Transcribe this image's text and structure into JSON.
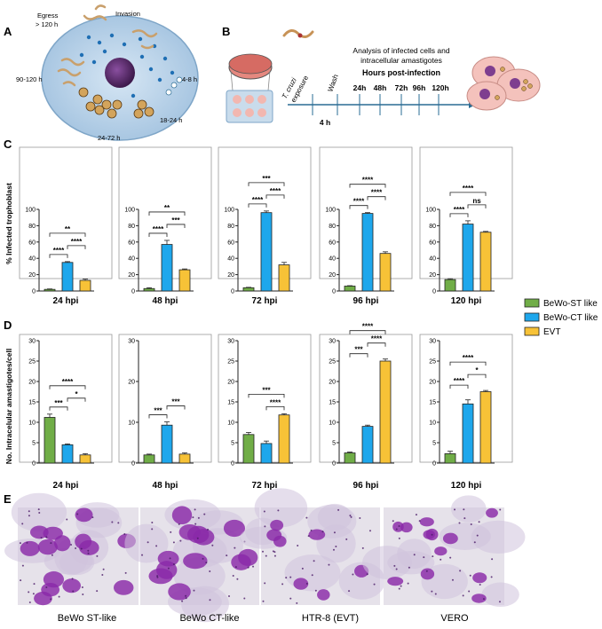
{
  "panel_labels": [
    "A",
    "B",
    "C",
    "D",
    "E"
  ],
  "colors": {
    "st_like": "#70ad47",
    "ct_like": "#1ea7ec",
    "evt": "#f7c237",
    "cell_body": "#b8d3ea",
    "nucleus": "#5b2e6b",
    "timeline": "#2a6c94",
    "cells_b": "#f4c2bc"
  },
  "panel_a": {
    "labels": [
      "Egress",
      "> 120 h",
      "Invasion",
      "4-8 h",
      "90-120 h",
      "18-24 h",
      "24-72 h"
    ]
  },
  "panel_b": {
    "heading_line1": "Analysis of infected cells and",
    "heading_line2": "intracellular amastigotes",
    "subheading": "Hours post-infection",
    "exposure_line1": "T. cruzi",
    "exposure_line2": "exposure",
    "wash": "Wash",
    "interval": "4 h",
    "timepoints": [
      "24h",
      "48h",
      "72h",
      "96h",
      "120h"
    ]
  },
  "legend": [
    "BeWo-ST like",
    "BeWo-CT like",
    "EVT"
  ],
  "chart_data": [
    {
      "panel": "C",
      "type": "bar",
      "ylabel": "% Infected trophoblast",
      "ylim": [
        0,
        100
      ],
      "yticks": [
        "0",
        "20",
        "40",
        "60",
        "80",
        "100"
      ],
      "categories": [
        "BeWo-ST like",
        "BeWo-CT like",
        "EVT"
      ],
      "charts": [
        {
          "title": "24 hpi",
          "values": [
            2,
            35,
            13
          ],
          "errors": [
            0.5,
            1,
            1.5
          ],
          "sig": [
            {
              "a": 0,
              "b": 1,
              "label": "****"
            },
            {
              "a": 1,
              "b": 2,
              "label": "****"
            },
            {
              "a": 0,
              "b": 2,
              "label": "**"
            }
          ]
        },
        {
          "title": "48 hpi",
          "values": [
            3,
            57,
            26
          ],
          "errors": [
            1,
            5,
            1
          ],
          "sig": [
            {
              "a": 0,
              "b": 1,
              "label": "****"
            },
            {
              "a": 1,
              "b": 2,
              "label": "***"
            },
            {
              "a": 0,
              "b": 2,
              "label": "**"
            }
          ]
        },
        {
          "title": "72 hpi",
          "values": [
            4,
            96,
            32
          ],
          "errors": [
            0.5,
            2,
            3
          ],
          "sig": [
            {
              "a": 0,
              "b": 1,
              "label": "****"
            },
            {
              "a": 1,
              "b": 2,
              "label": "****"
            },
            {
              "a": 0,
              "b": 2,
              "label": "***"
            }
          ]
        },
        {
          "title": "96 hpi",
          "values": [
            6,
            95,
            46
          ],
          "errors": [
            0.5,
            1,
            2
          ],
          "sig": [
            {
              "a": 0,
              "b": 1,
              "label": "****"
            },
            {
              "a": 1,
              "b": 2,
              "label": "****"
            },
            {
              "a": 0,
              "b": 2,
              "label": "****"
            }
          ]
        },
        {
          "title": "120 hpi",
          "values": [
            14,
            82,
            72
          ],
          "errors": [
            1,
            4,
            1
          ],
          "sig": [
            {
              "a": 0,
              "b": 1,
              "label": "****"
            },
            {
              "a": 1,
              "b": 2,
              "label": "ns"
            },
            {
              "a": 0,
              "b": 2,
              "label": "****"
            }
          ]
        }
      ]
    },
    {
      "panel": "D",
      "type": "bar",
      "ylabel": "No. Intracelular amastigotes/cell",
      "categories": [
        "BeWo-ST like",
        "BeWo-CT like",
        "EVT"
      ],
      "charts": [
        {
          "title": "24 hpi",
          "ylim": [
            0,
            30
          ],
          "yticks": [
            "0",
            "5",
            "10",
            "15",
            "20",
            "25",
            "30"
          ],
          "values": [
            11.2,
            4.5,
            2.0
          ],
          "errors": [
            0.8,
            0.2,
            0.3
          ],
          "sig": [
            {
              "a": 0,
              "b": 1,
              "label": "***"
            },
            {
              "a": 1,
              "b": 2,
              "label": "*"
            },
            {
              "a": 0,
              "b": 2,
              "label": "****"
            }
          ]
        },
        {
          "title": "48 hpi",
          "ylim": [
            0,
            30
          ],
          "yticks": [
            "0",
            "10",
            "20",
            "30"
          ],
          "values": [
            2.0,
            9.3,
            2.2
          ],
          "errors": [
            0.2,
            0.8,
            0.3
          ],
          "sig": [
            {
              "a": 0,
              "b": 1,
              "label": "***"
            },
            {
              "a": 1,
              "b": 2,
              "label": "***"
            }
          ]
        },
        {
          "title": "72 hpi",
          "ylim": [
            0,
            30
          ],
          "yticks": [
            "0",
            "5",
            "10",
            "15",
            "20",
            "25",
            "30"
          ],
          "values": [
            7.0,
            4.8,
            11.8
          ],
          "errors": [
            0.5,
            0.6,
            0.3
          ],
          "sig": [
            {
              "a": 1,
              "b": 2,
              "label": "****"
            },
            {
              "a": 0,
              "b": 2,
              "label": "***"
            }
          ]
        },
        {
          "title": "96 hpi",
          "ylim": [
            0,
            30
          ],
          "yticks": [
            "0",
            "5",
            "10",
            "15",
            "20",
            "25",
            "30"
          ],
          "values": [
            2.5,
            9.0,
            25.0
          ],
          "errors": [
            0.2,
            0.3,
            0.5
          ],
          "sig": [
            {
              "a": 0,
              "b": 1,
              "label": "***"
            },
            {
              "a": 1,
              "b": 2,
              "label": "****"
            },
            {
              "a": 0,
              "b": 2,
              "label": "****"
            }
          ]
        },
        {
          "title": "120 hpi",
          "ylim": [
            0,
            30
          ],
          "yticks": [
            "0",
            "5",
            "10",
            "15",
            "20",
            "25",
            "30"
          ],
          "values": [
            2.3,
            14.5,
            17.5
          ],
          "errors": [
            0.6,
            1.0,
            0.3
          ],
          "sig": [
            {
              "a": 0,
              "b": 1,
              "label": "****"
            },
            {
              "a": 1,
              "b": 2,
              "label": "*"
            },
            {
              "a": 0,
              "b": 2,
              "label": "****"
            }
          ]
        }
      ]
    }
  ],
  "panel_e": {
    "captions": [
      "BeWo ST-like",
      "BeWo CT-like",
      "HTR-8 (EVT)",
      "VERO"
    ]
  }
}
